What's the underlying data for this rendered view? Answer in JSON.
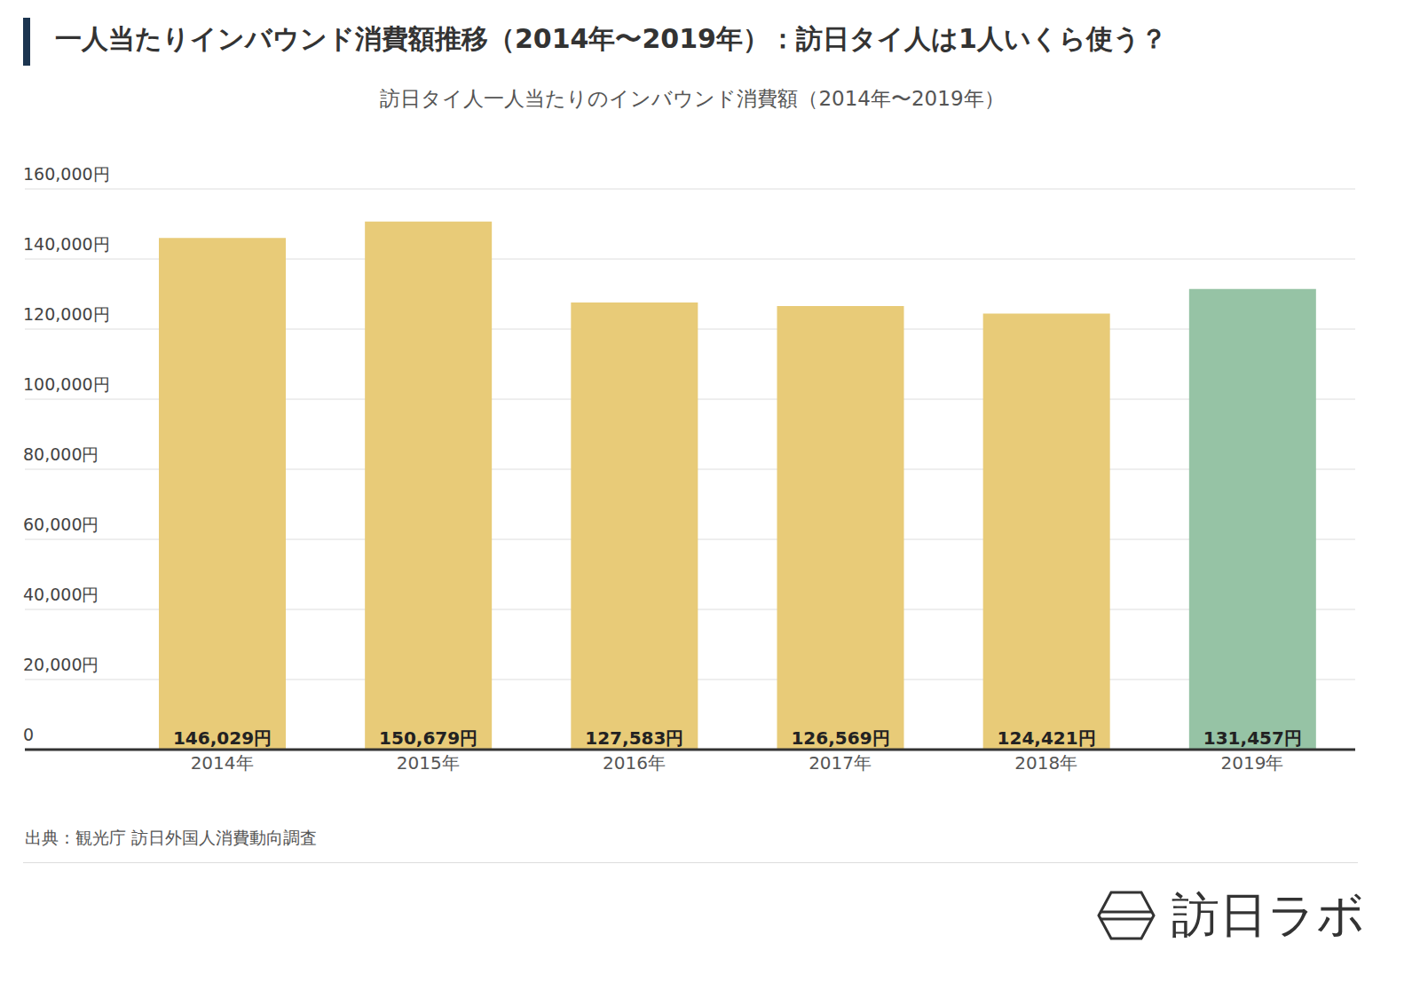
{
  "chart_data": {
    "type": "bar",
    "title": "一人当たりインバウンド消費額推移（2014年〜2019年）：訪日タイ人は1人いくら使う？",
    "subtitle": "訪日タイ人一人当たりのインバウンド消費額（2014年〜2019年）",
    "source": "出典：観光庁 訪日外国人消費動向調査",
    "brand": "訪日ラボ",
    "categories": [
      "2014年",
      "2015年",
      "2016年",
      "2017年",
      "2018年",
      "2019年"
    ],
    "values": [
      146029,
      150679,
      127583,
      126569,
      124421,
      131457
    ],
    "value_labels": [
      "146,029円",
      "150,679円",
      "127,583円",
      "126,569円",
      "124,421円",
      "131,457円"
    ],
    "colors": [
      "#e8cb78",
      "#e8cb78",
      "#e8cb78",
      "#e8cb78",
      "#e8cb78",
      "#96c3a5"
    ],
    "ylim": [
      0,
      160000
    ],
    "yticks": [
      0,
      {
        "value": 20000,
        "label": "20,000円"
      },
      {
        "value": 40000,
        "label": "40,000円"
      },
      {
        "value": 60000,
        "label": "60,000円"
      },
      {
        "value": 80000,
        "label": "80,000円"
      },
      {
        "value": 100000,
        "label": "100,000円"
      },
      {
        "value": 120000,
        "label": "120,000円"
      },
      {
        "value": 140000,
        "label": "140,000円"
      },
      {
        "value": 160000,
        "label": "160,000円"
      }
    ],
    "grid": true,
    "data_labels": true
  }
}
